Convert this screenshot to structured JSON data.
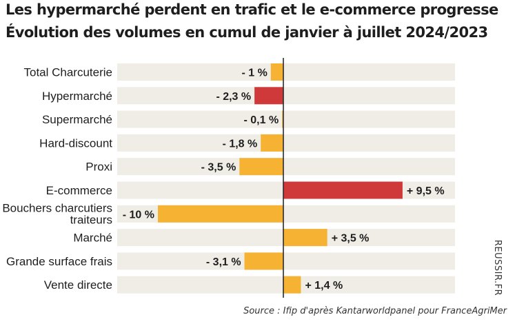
{
  "chart_data": {
    "type": "bar",
    "orientation": "horizontal",
    "title": "Les hypermarché perdent en trafic et le e-commerce progresse",
    "subtitle": "Évolution des volumes en cumul de janvier à juillet 2024/2023",
    "categories": [
      "Total Charcuterie",
      "Hypermarché",
      "Supermarché",
      "Hard-discount",
      "Proxi",
      "E-commerce",
      "Bouchers charcutiers traiteurs",
      "Marché",
      "Grande surface frais",
      "Vente directe"
    ],
    "values": [
      -1,
      -2.3,
      -0.1,
      -1.8,
      -3.5,
      9.5,
      -10,
      3.5,
      -3.1,
      1.4
    ],
    "value_labels": [
      "- 1 %",
      "- 2,3 %",
      "- 0,1 %",
      "- 1,8 %",
      "- 3,5 %",
      "+ 9,5 %",
      "- 10 %",
      "+ 3,5 %",
      "- 3,1 %",
      "+ 1,4 %"
    ],
    "highlighted": [
      false,
      true,
      false,
      false,
      false,
      true,
      false,
      false,
      false,
      false
    ],
    "xlim": [
      -10,
      10
    ],
    "unit": "%",
    "source": "Source : Ifip d'après Kantarworldpanel pour FranceAgriMer",
    "side_label": "REUSSIR.FR",
    "colors": {
      "bar": "#f6b233",
      "highlight": "#d0393a",
      "row_band": "#f0ede7",
      "axis": "#2a2a2a"
    }
  }
}
